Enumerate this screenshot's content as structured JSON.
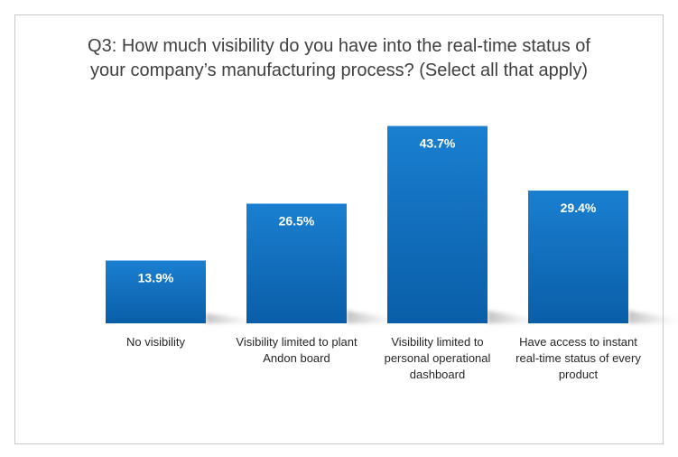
{
  "chart_data": {
    "type": "bar",
    "title_lines": [
      "Q3: How much visibility do you have into the real-time status of",
      "your company’s manufacturing process? (Select all that apply)"
    ],
    "categories": [
      [
        "No visibility"
      ],
      [
        "Visibility limited to plant",
        "Andon board"
      ],
      [
        "Visibility limited to",
        "personal operational",
        "dashboard"
      ],
      [
        "Have access to instant",
        "real-time status of every",
        "product"
      ]
    ],
    "values": [
      13.9,
      26.5,
      43.7,
      29.4
    ],
    "value_labels": [
      "13.9%",
      "26.5%",
      "43.7%",
      "29.4%"
    ],
    "ylim": [
      0,
      50
    ],
    "grid": false,
    "colors": {
      "bar_top": "#1a7fd0",
      "bar_bottom": "#0a5ea8",
      "label": "#ffffff"
    }
  }
}
